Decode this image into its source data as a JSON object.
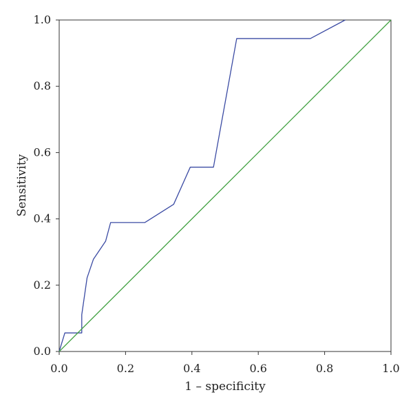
{
  "chart_data": {
    "type": "line",
    "title": "",
    "xlabel": "1 – specificity",
    "ylabel": "Sensitivity",
    "xlim": [
      0.0,
      1.0
    ],
    "ylim": [
      0.0,
      1.0
    ],
    "x_ticks": [
      "0.0",
      "0.2",
      "0.4",
      "0.6",
      "0.8",
      "1.0"
    ],
    "y_ticks": [
      "0.0",
      "0.2",
      "0.4",
      "0.6",
      "0.8",
      "1.0"
    ],
    "grid": false,
    "legend": "none",
    "series": [
      {
        "color": "#3a4aa3",
        "x": [
          0.0,
          0.017,
          0.068,
          0.068,
          0.084,
          0.103,
          0.14,
          0.155,
          0.258,
          0.345,
          0.395,
          0.465,
          0.485,
          0.515,
          0.535,
          0.757,
          0.862
        ],
        "y": [
          0.0,
          0.056,
          0.056,
          0.111,
          0.222,
          0.278,
          0.333,
          0.389,
          0.389,
          0.444,
          0.556,
          0.556,
          0.667,
          0.833,
          0.944,
          0.944,
          1.0
        ]
      },
      {
        "color": "#3fa03f",
        "x": [
          0.0,
          1.0
        ],
        "y": [
          0.0,
          1.0
        ]
      }
    ]
  }
}
